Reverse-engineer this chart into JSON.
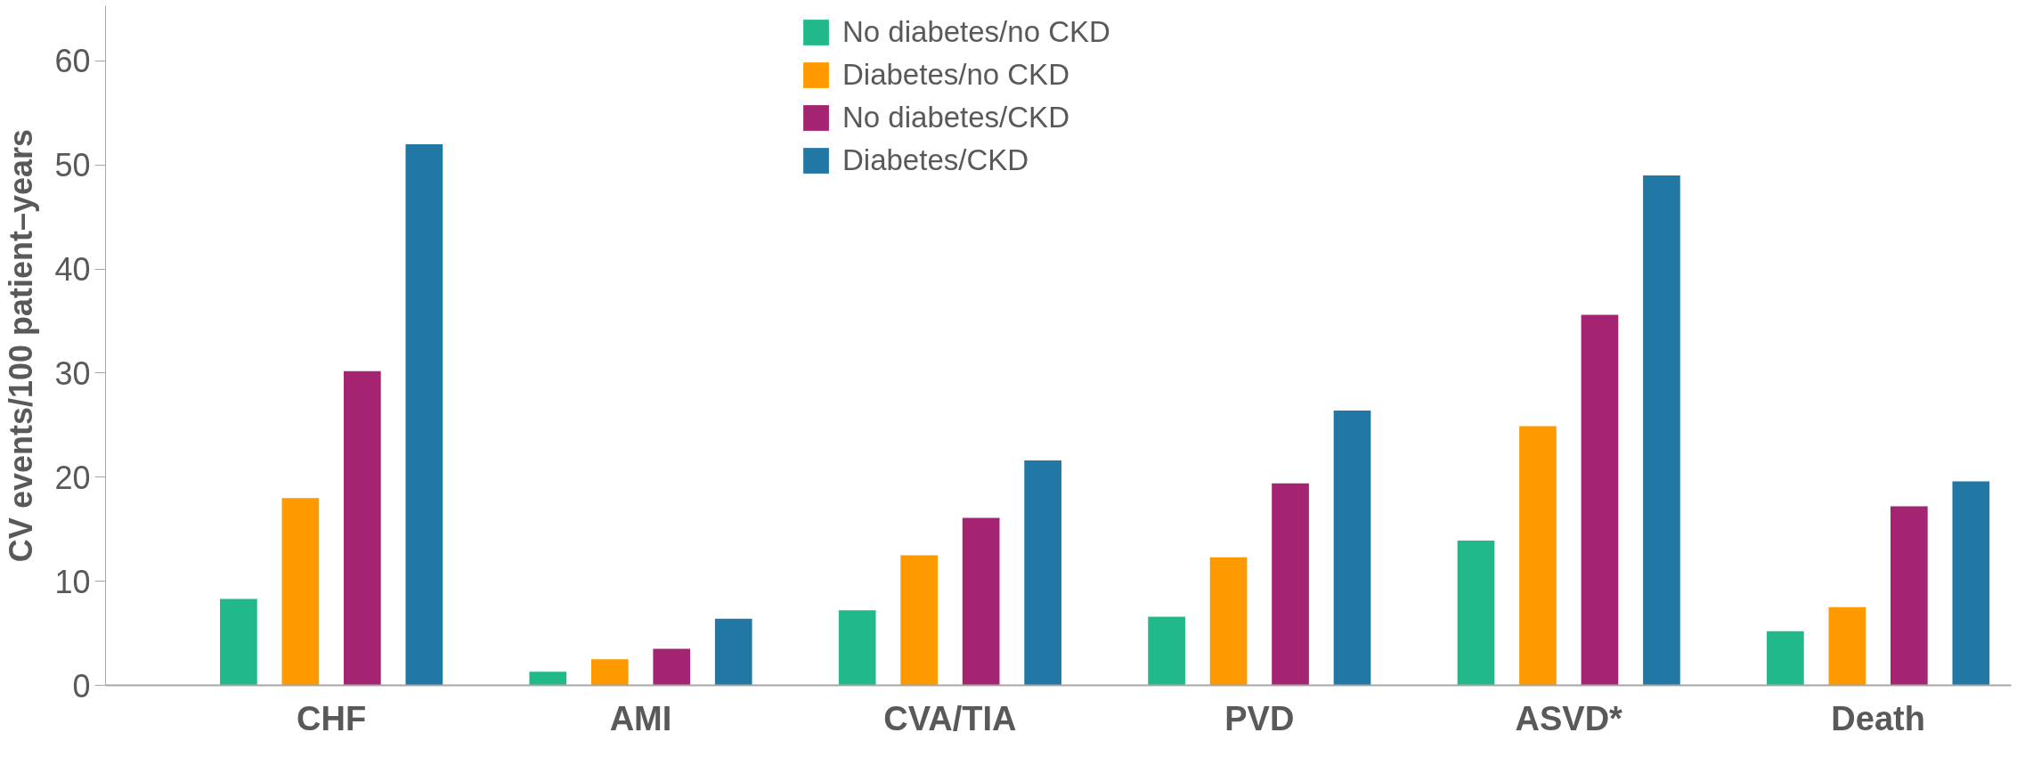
{
  "chart_data": {
    "type": "bar",
    "ylabel": "CV events/100 patient–years",
    "categories": [
      "CHF",
      "AMI",
      "CVA/TIA",
      "PVD",
      "ASVD*",
      "Death"
    ],
    "series": [
      {
        "name": "No diabetes/no CKD",
        "color": "#22b98a",
        "values": [
          8.3,
          1.3,
          7.2,
          6.6,
          13.9,
          5.2
        ]
      },
      {
        "name": "Diabetes/no CKD",
        "color": "#fe9900",
        "values": [
          18,
          2.5,
          12.5,
          12.3,
          24.9,
          7.5
        ]
      },
      {
        "name": "No diabetes/CKD",
        "color": "#a52472",
        "values": [
          30.2,
          3.5,
          16.1,
          19.4,
          35.6,
          17.2
        ]
      },
      {
        "name": "Diabetes/CKD",
        "color": "#2278a5",
        "values": [
          52,
          6.4,
          21.6,
          26.4,
          49,
          19.6
        ]
      }
    ],
    "ylim": [
      0,
      65.3
    ],
    "yticks": [
      0,
      10,
      20,
      30,
      40,
      50,
      60
    ],
    "grid": false,
    "legend": "top"
  }
}
